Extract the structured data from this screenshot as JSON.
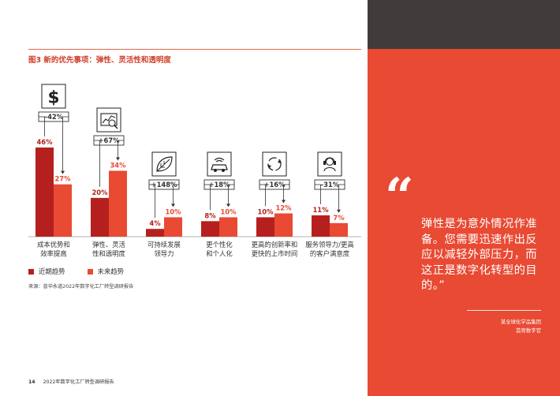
{
  "figure": {
    "title": "图3 新的优先事项：弹性、灵活性和透明度",
    "source": "来源：普华永道2022年数字化工厂转型调研报告"
  },
  "colors": {
    "recent": "#b5201e",
    "future": "#e84a33",
    "panel": "#e84a33",
    "dark": "#403c3c"
  },
  "chart_data": {
    "type": "bar",
    "categories": [
      "成本优势和\n效率提高",
      "弹性、灵活\n性和透明度",
      "可持续发展\n领导力",
      "更个性化\n和个人化",
      "更高的创新率和\n更快的上市时间",
      "服务领导力/更高\n的客户满意度"
    ],
    "series": [
      {
        "name": "近期趋势",
        "values": [
          46,
          20,
          4,
          8,
          10,
          11
        ]
      },
      {
        "name": "未来趋势",
        "values": [
          27,
          34,
          10,
          10,
          12,
          7
        ]
      }
    ],
    "value_labels": {
      "recent": [
        "46%",
        "20%",
        "4%",
        "8%",
        "10%",
        "11%"
      ],
      "future": [
        "27%",
        "34%",
        "10%",
        "10%",
        "12%",
        "7%"
      ]
    },
    "changes": [
      "–42%",
      "+67%",
      "+148%",
      "+18%",
      "+16%",
      "–31%"
    ],
    "icons": [
      "dollar-icon",
      "analytics-icon",
      "leaf-icon",
      "connected-car-icon",
      "innovation-cycle-icon",
      "customer-service-icon"
    ],
    "ylim": [
      0,
      50
    ]
  },
  "legend": {
    "recent": "近期趋势",
    "future": "未来趋势"
  },
  "quote": {
    "mark": "“",
    "text": "弹性是为意外情况作准备。您需要迅速作出反应以减轻外部压力，而这正是数字化转型的目的。”",
    "org": "某全球化学品集团",
    "role": "首席数字官"
  },
  "footer": {
    "page": "14",
    "title": "2022年数字化工厂转型调研报告"
  }
}
